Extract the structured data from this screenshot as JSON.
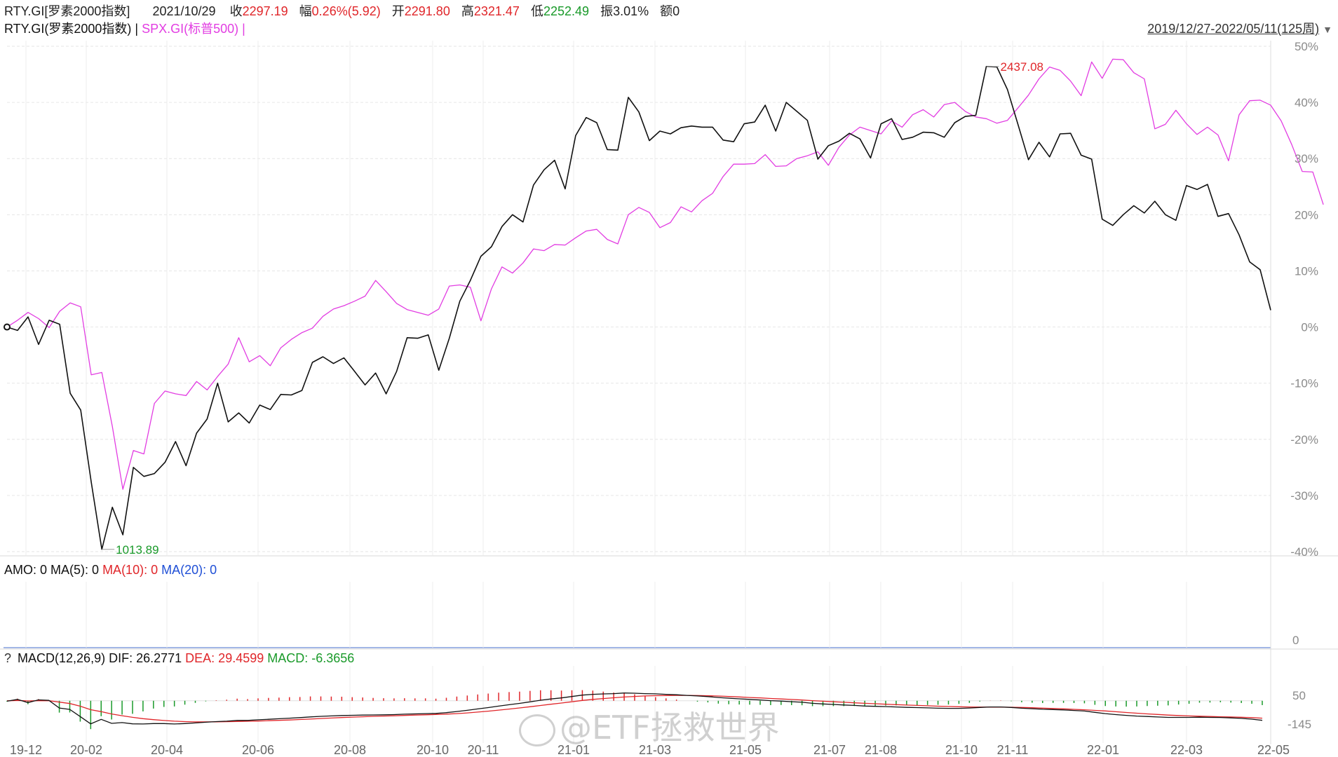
{
  "header": {
    "code": "RTY.GI[罗素2000指数]",
    "date": "2021/10/29",
    "close_label": "收",
    "close_value": "2297.19",
    "change_label": "幅",
    "change_value": "0.26%(5.92)",
    "open_label": "开",
    "open_value": "2291.80",
    "high_label": "高",
    "high_value": "2321.47",
    "low_label": "低",
    "low_value": "2252.49",
    "amp_label": "振",
    "amp_value": "3.01%",
    "amount_label": "额",
    "amount_value": "0"
  },
  "legend_line": {
    "series1": "RTY.GI(罗素2000指数) |",
    "series2": "SPX.GI(标普500) |"
  },
  "range_label": "2019/12/27-2022/05/11(125周)",
  "amo_panel": {
    "amo": "AMO: 0",
    "ma5": "MA(5): 0",
    "ma10": "MA(10): 0",
    "ma20": "MA(20): 0",
    "zero_tick": "0"
  },
  "macd_panel": {
    "question": "?",
    "title": "MACD(12,26,9)",
    "dif": "DIF: 26.2771",
    "dea": "DEA: 29.4599",
    "macd": "MACD: -6.3656",
    "tick_top": "50",
    "tick_bottom": "-145"
  },
  "watermark": "@ETF拯救世界",
  "colors": {
    "rty": "#111111",
    "spx": "#e23de2",
    "up": "#e0262a",
    "down": "#1a9a2a",
    "ma20": "#1f4fd6",
    "axis_text": "#8a8a8a"
  },
  "chart_data": [
    {
      "type": "line",
      "title": "",
      "y_unit": "%",
      "ylim": [
        -40,
        50
      ],
      "yticks": [
        "50%",
        "40%",
        "30%",
        "20%",
        "10%",
        "0%",
        "-10%",
        "-20%",
        "-30%",
        "-40%"
      ],
      "xticks": [
        "19-12",
        "20-02",
        "20-04",
        "20-06",
        "20-08",
        "20-10",
        "20-11",
        "21-01",
        "21-03",
        "21-05",
        "21-07",
        "21-08",
        "21-10",
        "21-11",
        "22-01",
        "22-03",
        "22-05"
      ],
      "annotations": {
        "high": "2437.08",
        "low": "1013.89"
      },
      "series": [
        {
          "name": "RTY.GI(罗素2000指数)",
          "values": [
            0.0,
            -0.6,
            1.8,
            -3.1,
            1.2,
            0.5,
            -11.8,
            -14.8,
            -27.6,
            -39.6,
            -32.1,
            -37.0,
            -25.0,
            -26.6,
            -26.1,
            -24.1,
            -20.4,
            -24.7,
            -18.9,
            -16.4,
            -10.0,
            -16.9,
            -15.3,
            -17.1,
            -13.9,
            -14.7,
            -12.0,
            -12.1,
            -11.3,
            -6.3,
            -5.3,
            -6.5,
            -5.5,
            -7.9,
            -10.3,
            -8.2,
            -11.9,
            -7.9,
            -1.9,
            -2.0,
            -1.4,
            -7.7,
            -2.0,
            4.6,
            8.3,
            12.6,
            14.3,
            17.9,
            20.0,
            18.7,
            25.3,
            28.0,
            29.7,
            24.6,
            34.1,
            37.3,
            36.4,
            31.6,
            31.5,
            40.9,
            38.3,
            33.2,
            34.9,
            34.4,
            35.5,
            35.8,
            35.6,
            35.6,
            33.3,
            33.0,
            36.2,
            36.5,
            39.5,
            34.9,
            40.0,
            38.4,
            36.8,
            29.9,
            32.3,
            33.1,
            34.5,
            33.5,
            30.1,
            36.2,
            37.1,
            33.4,
            33.8,
            34.7,
            34.6,
            33.8,
            36.4,
            37.5,
            37.7,
            46.4,
            46.3,
            42.3,
            36.1,
            29.8,
            32.9,
            30.3,
            34.4,
            34.5,
            30.6,
            29.9,
            19.2,
            18.1,
            20.0,
            21.6,
            20.3,
            22.4,
            20.0,
            19.0,
            25.2,
            24.5,
            25.4,
            19.7,
            20.2,
            16.4,
            11.6,
            10.2,
            3.0
          ]
        },
        {
          "name": "SPX.GI(标普500)",
          "values": [
            0.0,
            1.2,
            2.6,
            1.5,
            -0.1,
            2.8,
            4.3,
            3.6,
            -8.5,
            -8.1,
            -17.7,
            -28.9,
            -22.0,
            -22.6,
            -13.6,
            -11.4,
            -11.9,
            -12.2,
            -9.7,
            -11.2,
            -8.8,
            -6.6,
            -1.9,
            -6.2,
            -5.1,
            -6.9,
            -3.7,
            -2.2,
            -1.0,
            -0.2,
            1.9,
            3.2,
            3.8,
            4.6,
            5.5,
            8.3,
            6.3,
            4.2,
            3.1,
            2.6,
            2.1,
            3.2,
            7.3,
            7.5,
            7.1,
            1.1,
            6.8,
            10.7,
            9.6,
            11.4,
            13.9,
            13.6,
            14.7,
            14.6,
            15.9,
            17.1,
            17.4,
            15.6,
            14.8,
            20.0,
            21.3,
            20.4,
            17.7,
            18.6,
            21.4,
            20.5,
            22.5,
            23.8,
            26.8,
            29.0,
            29.0,
            29.1,
            30.7,
            28.6,
            28.7,
            30.0,
            30.5,
            31.2,
            28.8,
            32.0,
            34.2,
            35.6,
            35.0,
            34.4,
            36.7,
            35.6,
            37.8,
            38.7,
            37.4,
            39.6,
            40.0,
            38.4,
            37.4,
            37.1,
            36.3,
            36.8,
            39.0,
            41.3,
            44.2,
            46.3,
            45.7,
            43.8,
            41.2,
            47.2,
            44.3,
            47.7,
            47.6,
            45.3,
            44.2,
            35.3,
            36.1,
            38.6,
            36.2,
            34.3,
            35.6,
            34.2,
            29.6,
            37.8,
            40.3,
            40.4,
            39.5,
            36.7,
            32.5,
            27.7,
            27.6,
            21.8
          ]
        }
      ]
    },
    {
      "type": "line",
      "title": "AMO: 0 MA(5): 0 MA(10): 0 MA(20): 0",
      "ylim": [
        0,
        1
      ],
      "series": [
        {
          "name": "AMO",
          "values": [
            0
          ]
        },
        {
          "name": "MA(5)",
          "values": [
            0
          ]
        },
        {
          "name": "MA(10)",
          "values": [
            0
          ]
        },
        {
          "name": "MA(20)",
          "values": [
            0
          ]
        }
      ]
    },
    {
      "type": "bar",
      "title": "MACD(12,26,9)",
      "ylim": [
        -145,
        50
      ],
      "yticks": [
        "50",
        "-145"
      ],
      "x_points": 124,
      "dif": [
        -0.6,
        1.8,
        -2.5,
        1.2,
        0.5,
        -9.7,
        -11.5,
        -21.1,
        -30.8,
        -24.8,
        -30.1,
        -29.1,
        -30.8,
        -31.0,
        -30.4,
        -30.4,
        -31.0,
        -30.4,
        -29.6,
        -28.6,
        -27.8,
        -27.2,
        -26.2,
        -26.2,
        -25.4,
        -24.7,
        -24.0,
        -23.2,
        -22.5,
        -21.5,
        -20.8,
        -20.2,
        -19.7,
        -19.4,
        -19.1,
        -18.9,
        -18.7,
        -18.4,
        -17.9,
        -17.5,
        -17.1,
        -16.9,
        -15.8,
        -14.3,
        -12.7,
        -10.9,
        -9.1,
        -7.1,
        -5.3,
        -3.5,
        -1.4,
        0.7,
        2.4,
        3.8,
        5.7,
        7.5,
        8.6,
        9.1,
        9.5,
        10.3,
        10.1,
        9.5,
        9.2,
        8.6,
        8.0,
        7.2,
        6.4,
        5.6,
        4.4,
        3.4,
        2.6,
        1.8,
        1.1,
        0.2,
        -0.4,
        -1.2,
        -2.0,
        -3.4,
        -4.2,
        -4.9,
        -5.6,
        -6.2,
        -7.0,
        -7.4,
        -7.8,
        -8.3,
        -8.8,
        -9.1,
        -9.5,
        -9.9,
        -10.1,
        -10.1,
        -9.7,
        -8.9,
        -8.3,
        -8.3,
        -8.9,
        -9.9,
        -10.6,
        -11.3,
        -11.7,
        -12.2,
        -12.9,
        -13.7,
        -15.5,
        -17.1,
        -18.4,
        -19.5,
        -20.4,
        -21.0,
        -21.6,
        -22.2,
        -22.2,
        -22.2,
        -21.9,
        -22.2,
        -22.3,
        -22.8,
        -23.5,
        -24.5,
        -26.1
      ],
      "dea": [
        0.0,
        0.4,
        -0.2,
        0.1,
        0.2,
        -1.8,
        -3.7,
        -7.2,
        -11.9,
        -14.5,
        -17.6,
        -19.9,
        -22.1,
        -23.9,
        -25.2,
        -26.3,
        -27.2,
        -27.8,
        -28.2,
        -28.2,
        -28.1,
        -27.9,
        -27.6,
        -27.3,
        -27.0,
        -26.6,
        -26.1,
        -25.6,
        -25.0,
        -24.4,
        -23.7,
        -23.0,
        -22.4,
        -21.8,
        -21.3,
        -20.8,
        -20.4,
        -20.0,
        -19.6,
        -19.1,
        -18.7,
        -18.3,
        -17.8,
        -17.1,
        -16.2,
        -15.1,
        -13.9,
        -12.5,
        -11.1,
        -9.6,
        -8.0,
        -6.3,
        -4.6,
        -3.0,
        -1.3,
        0.4,
        1.8,
        3.0,
        4.0,
        5.0,
        5.8,
        6.4,
        6.8,
        7.0,
        7.2,
        7.2,
        7.0,
        6.7,
        6.3,
        5.7,
        5.1,
        4.4,
        3.8,
        3.1,
        2.4,
        1.7,
        1.0,
        0.2,
        -0.6,
        -1.3,
        -2.0,
        -2.7,
        -3.4,
        -4.0,
        -4.6,
        -5.2,
        -5.7,
        -6.2,
        -6.7,
        -7.2,
        -7.6,
        -8.0,
        -8.3,
        -8.4,
        -8.4,
        -8.5,
        -8.6,
        -8.9,
        -9.3,
        -9.8,
        -10.3,
        -10.8,
        -11.4,
        -12.0,
        -12.8,
        -13.6,
        -14.6,
        -15.6,
        -16.6,
        -17.5,
        -18.3,
        -19.1,
        -19.7,
        -20.2,
        -20.6,
        -21.0,
        -21.3,
        -21.6,
        -22.0,
        -22.5,
        -23.2
      ]
    }
  ]
}
